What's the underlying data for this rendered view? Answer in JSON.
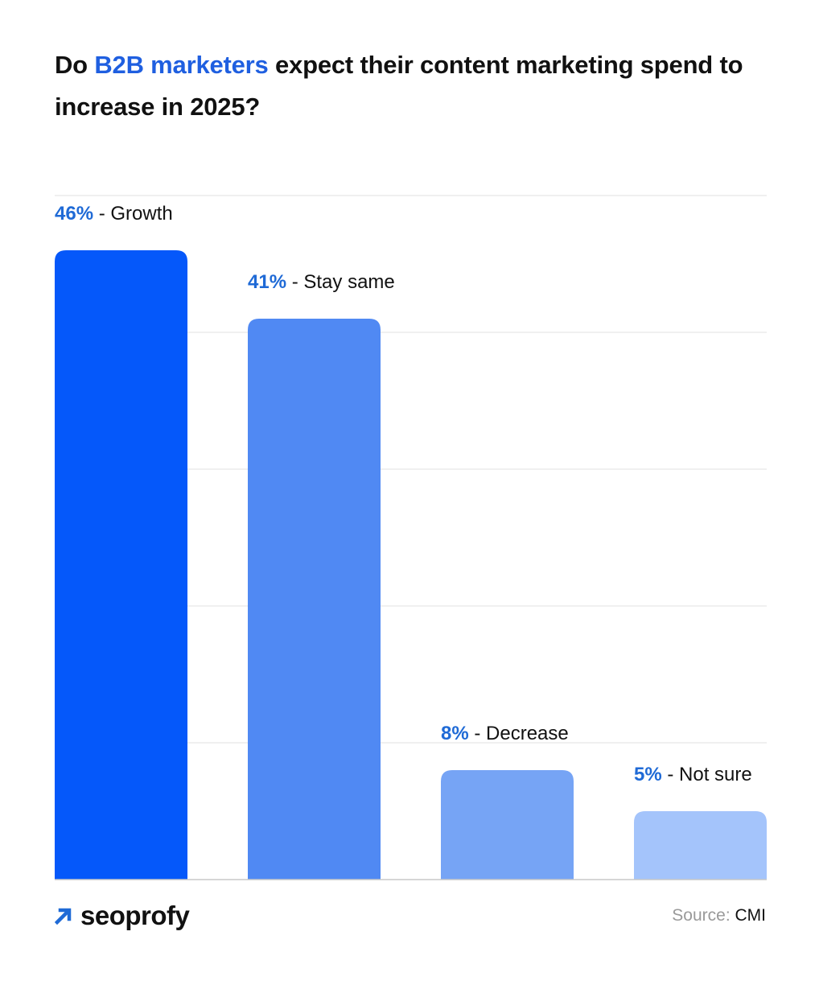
{
  "title": {
    "part1": "Do ",
    "highlight": "B2B marketers",
    "part2": " expect their content marketing spend to increase in 2025?"
  },
  "colors": {
    "highlight": "#1f5fe0",
    "percent_label": "#1f6ad6",
    "gridline": "#e2e2e2",
    "baseline": "#c8c8c8",
    "logo_arrow": "#1f6ad6"
  },
  "chart_data": {
    "type": "bar",
    "categories": [
      "Growth",
      "Stay same",
      "Decrease",
      "Not sure"
    ],
    "values": [
      46,
      41,
      8,
      5
    ],
    "value_labels": [
      "46%",
      "41%",
      "8%",
      "5%"
    ],
    "bar_colors": [
      "#0558fa",
      "#5089f3",
      "#76a4f5",
      "#a4c4fb"
    ],
    "ylim": [
      0,
      50
    ],
    "grid": true,
    "xlabel": "",
    "ylabel": ""
  },
  "footer": {
    "logo_text": "seoprofy",
    "logo_icon": "arrow-up-right-icon",
    "source_label": "Source: ",
    "source_name": "CMI"
  }
}
